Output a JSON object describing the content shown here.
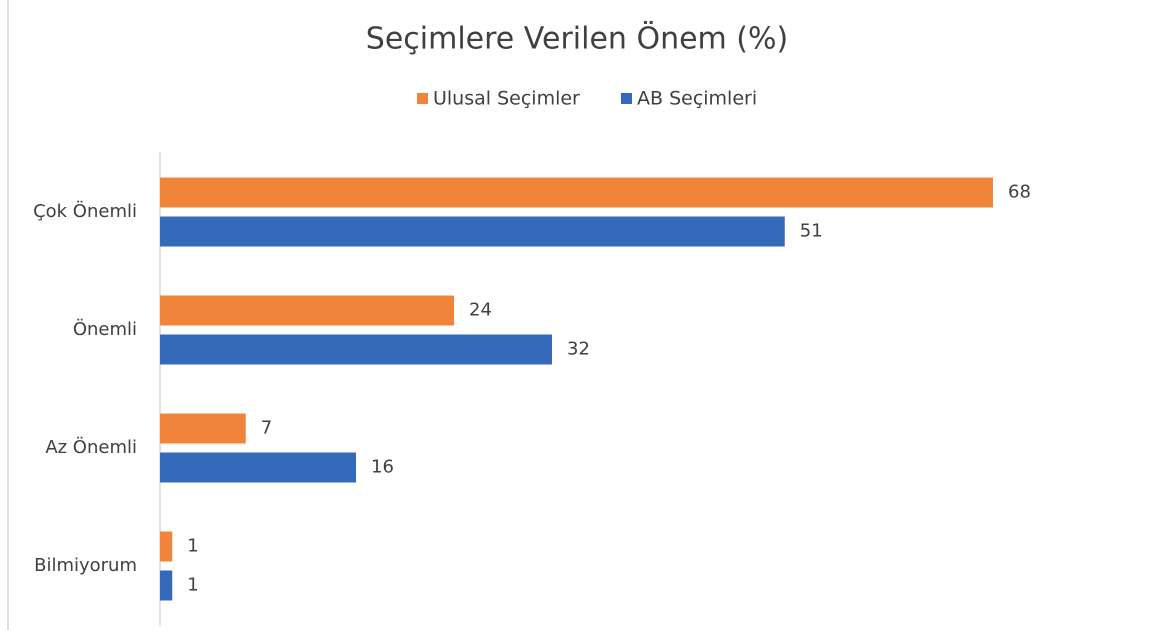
{
  "chart_data": {
    "type": "bar",
    "orientation": "horizontal",
    "title": "Seçimlere Verilen Önem (%)",
    "categories": [
      "Çok Önemli",
      "Önemli",
      "Az Önemli",
      "Bilmiyorum"
    ],
    "series": [
      {
        "name": "Ulusal Seçimler",
        "color": "#f0843a",
        "values": [
          68,
          24,
          7,
          1
        ]
      },
      {
        "name": "AB Seçimleri",
        "color": "#3569ba",
        "values": [
          51,
          32,
          16,
          1
        ]
      }
    ],
    "xlim": [
      0,
      80
    ],
    "legend": "top",
    "data_labels": true
  }
}
